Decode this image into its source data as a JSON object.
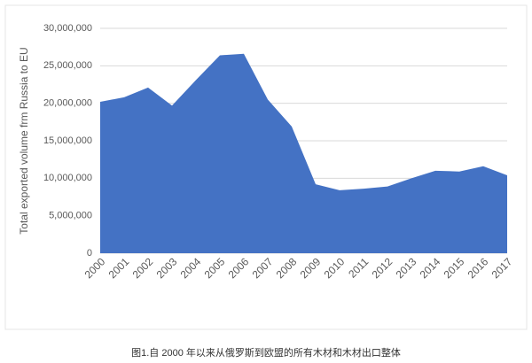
{
  "chart_data": {
    "type": "area",
    "y_label": "Total exported volume frm Russia to EU",
    "caption": "图1.自 2000 年以来从俄罗斯到欧盟的所有木材和木材出口整体",
    "categories": [
      "2000",
      "2001",
      "2002",
      "2003",
      "2004",
      "2005",
      "2006",
      "2007",
      "2008",
      "2009",
      "2010",
      "2011",
      "2012",
      "2013",
      "2014",
      "2015",
      "2016",
      "2017"
    ],
    "values": [
      20200000,
      20800000,
      22100000,
      19700000,
      23100000,
      26400000,
      26600000,
      20500000,
      16900000,
      9200000,
      8400000,
      8600000,
      8900000,
      10000000,
      11000000,
      10900000,
      11600000,
      10400000
    ],
    "color": "#4472c4",
    "ylim": [
      0,
      30000000
    ],
    "yticks": [
      0,
      {
        "value": 5000000,
        "label": "5,000,000"
      },
      {
        "value": 10000000,
        "label": "10,000,000"
      },
      {
        "value": 15000000,
        "label": "15,000,000"
      },
      {
        "value": 20000000,
        "label": "20,000,000"
      },
      {
        "value": 25000000,
        "label": "25,000,000"
      },
      {
        "value": 30000000,
        "label": "30,000,000"
      }
    ],
    "grid": true
  }
}
